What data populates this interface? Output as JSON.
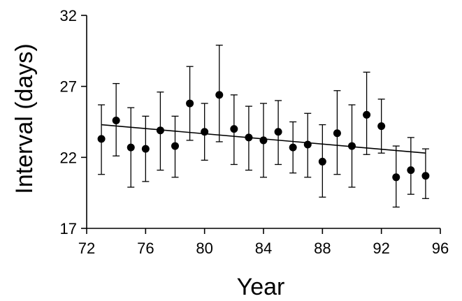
{
  "chart_data": {
    "type": "scatter",
    "title": "",
    "xlabel": "Year",
    "ylabel": "Interval (days)",
    "xlim": [
      72,
      96
    ],
    "ylim": [
      17,
      32
    ],
    "xticks": [
      72,
      76,
      80,
      84,
      88,
      92,
      96
    ],
    "yticks": [
      17,
      22,
      27,
      32
    ],
    "grid": false,
    "series": [
      {
        "points": [
          {
            "x": 73,
            "y": 23.3,
            "low": 20.8,
            "high": 25.7
          },
          {
            "x": 74,
            "y": 24.6,
            "low": 22.1,
            "high": 27.2
          },
          {
            "x": 75,
            "y": 22.7,
            "low": 19.9,
            "high": 25.5
          },
          {
            "x": 76,
            "y": 22.6,
            "low": 20.3,
            "high": 24.9
          },
          {
            "x": 77,
            "y": 23.9,
            "low": 21.1,
            "high": 26.6
          },
          {
            "x": 78,
            "y": 22.8,
            "low": 20.6,
            "high": 24.9
          },
          {
            "x": 79,
            "y": 25.8,
            "low": 23.2,
            "high": 28.4
          },
          {
            "x": 80,
            "y": 23.8,
            "low": 21.8,
            "high": 25.8
          },
          {
            "x": 81,
            "y": 26.4,
            "low": 23.1,
            "high": 29.9
          },
          {
            "x": 82,
            "y": 24.0,
            "low": 21.5,
            "high": 26.4
          },
          {
            "x": 83,
            "y": 23.4,
            "low": 21.1,
            "high": 25.6
          },
          {
            "x": 84,
            "y": 23.2,
            "low": 20.6,
            "high": 25.8
          },
          {
            "x": 85,
            "y": 23.8,
            "low": 21.5,
            "high": 26.0
          },
          {
            "x": 86,
            "y": 22.7,
            "low": 20.9,
            "high": 24.5
          },
          {
            "x": 87,
            "y": 22.9,
            "low": 20.6,
            "high": 25.1
          },
          {
            "x": 88,
            "y": 21.7,
            "low": 19.2,
            "high": 24.3
          },
          {
            "x": 89,
            "y": 23.7,
            "low": 20.8,
            "high": 26.7
          },
          {
            "x": 90,
            "y": 22.8,
            "low": 19.9,
            "high": 25.7
          },
          {
            "x": 91,
            "y": 25.0,
            "low": 22.2,
            "high": 28.0
          },
          {
            "x": 92,
            "y": 24.2,
            "low": 22.3,
            "high": 26.1
          },
          {
            "x": 93,
            "y": 20.6,
            "low": 18.5,
            "high": 22.8
          },
          {
            "x": 94,
            "y": 21.1,
            "low": 19.4,
            "high": 23.4
          },
          {
            "x": 95,
            "y": 20.7,
            "low": 19.1,
            "high": 22.6
          }
        ]
      }
    ],
    "trendline": {
      "x": [
        73,
        95
      ],
      "y": [
        24.3,
        22.3
      ]
    },
    "colors": {
      "marker": "#000000",
      "line": "#000000",
      "axis": "#000000"
    }
  }
}
